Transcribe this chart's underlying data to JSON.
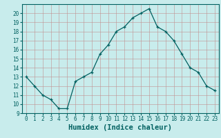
{
  "x": [
    0,
    1,
    2,
    3,
    4,
    5,
    6,
    7,
    8,
    9,
    10,
    11,
    12,
    13,
    14,
    15,
    16,
    17,
    18,
    19,
    20,
    21,
    22,
    23
  ],
  "y": [
    13,
    12,
    11,
    10.5,
    9.5,
    9.5,
    12.5,
    13,
    13.5,
    15.5,
    16.5,
    18,
    18.5,
    19.5,
    20,
    20.5,
    18.5,
    18,
    17,
    15.5,
    14,
    13.5,
    12,
    11.5
  ],
  "line_color": "#006060",
  "marker": "+",
  "bg_color": "#c8ecec",
  "grid_minor_color": "#c09090",
  "grid_major_color": "#c09090",
  "xlabel": "Humidex (Indice chaleur)",
  "xlim": [
    -0.5,
    23.5
  ],
  "ylim": [
    9,
    21
  ],
  "yticks": [
    9,
    10,
    11,
    12,
    13,
    14,
    15,
    16,
    17,
    18,
    19,
    20
  ],
  "xticks": [
    0,
    1,
    2,
    3,
    4,
    5,
    6,
    7,
    8,
    9,
    10,
    11,
    12,
    13,
    14,
    15,
    16,
    17,
    18,
    19,
    20,
    21,
    22,
    23
  ],
  "tick_fontsize": 5.5,
  "label_fontsize": 7.5
}
